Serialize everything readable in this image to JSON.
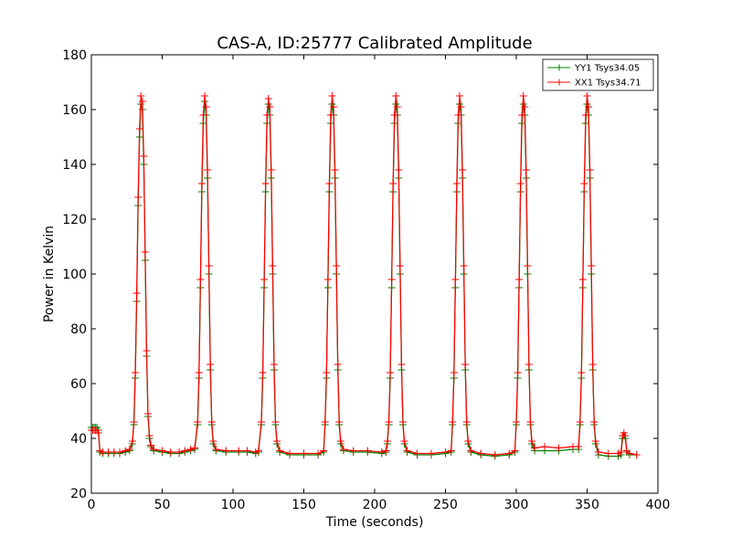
{
  "chart_data": {
    "type": "line",
    "title": "CAS-A, ID:25777 Calibrated Amplitude",
    "xlabel": "Time (seconds)",
    "ylabel": "Power in Kelvin",
    "xlim": [
      0,
      400
    ],
    "ylim": [
      20,
      180
    ],
    "xticks": [
      0,
      50,
      100,
      150,
      200,
      250,
      300,
      350,
      400
    ],
    "yticks": [
      20,
      40,
      60,
      80,
      100,
      120,
      140,
      160,
      180
    ],
    "grid": false,
    "legend_position": "top-right",
    "marker": "+",
    "series": [
      {
        "name": "YY1 Tsys34.05",
        "color": "#008000",
        "points": [
          [
            0,
            44
          ],
          [
            1,
            44
          ],
          [
            2,
            44
          ],
          [
            3,
            44
          ],
          [
            4,
            44
          ],
          [
            5,
            43
          ],
          [
            6,
            35
          ],
          [
            8,
            34.5
          ],
          [
            12,
            34.5
          ],
          [
            16,
            34.5
          ],
          [
            20,
            34.5
          ],
          [
            24,
            35
          ],
          [
            27,
            35.5
          ],
          [
            29,
            38
          ],
          [
            30,
            45
          ],
          [
            31,
            62
          ],
          [
            32,
            90
          ],
          [
            33,
            125
          ],
          [
            34,
            150
          ],
          [
            35,
            162
          ],
          [
            36,
            160
          ],
          [
            37,
            140
          ],
          [
            38,
            105
          ],
          [
            39,
            70
          ],
          [
            40,
            48
          ],
          [
            41,
            40
          ],
          [
            42,
            37
          ],
          [
            44,
            35.5
          ],
          [
            50,
            35
          ],
          [
            56,
            34.5
          ],
          [
            62,
            34.5
          ],
          [
            66,
            35
          ],
          [
            70,
            35.5
          ],
          [
            73,
            36
          ],
          [
            75,
            45
          ],
          [
            76,
            62
          ],
          [
            77,
            95
          ],
          [
            78,
            130
          ],
          [
            79,
            155
          ],
          [
            80,
            163
          ],
          [
            81,
            158
          ],
          [
            82,
            135
          ],
          [
            83,
            100
          ],
          [
            84,
            65
          ],
          [
            85,
            45
          ],
          [
            86,
            38
          ],
          [
            88,
            35.5
          ],
          [
            95,
            35
          ],
          [
            104,
            35
          ],
          [
            110,
            35
          ],
          [
            116,
            34.5
          ],
          [
            118,
            35
          ],
          [
            120,
            45
          ],
          [
            121,
            62
          ],
          [
            122,
            95
          ],
          [
            123,
            130
          ],
          [
            124,
            155
          ],
          [
            125,
            162
          ],
          [
            126,
            158
          ],
          [
            127,
            135
          ],
          [
            128,
            100
          ],
          [
            129,
            65
          ],
          [
            130,
            45
          ],
          [
            131,
            38
          ],
          [
            133,
            35
          ],
          [
            140,
            34
          ],
          [
            150,
            34
          ],
          [
            160,
            34
          ],
          [
            164,
            35
          ],
          [
            165,
            45
          ],
          [
            166,
            62
          ],
          [
            167,
            95
          ],
          [
            168,
            130
          ],
          [
            169,
            155
          ],
          [
            170,
            162
          ],
          [
            171,
            158
          ],
          [
            172,
            135
          ],
          [
            173,
            100
          ],
          [
            174,
            65
          ],
          [
            175,
            45
          ],
          [
            176,
            38
          ],
          [
            178,
            35.5
          ],
          [
            185,
            35
          ],
          [
            195,
            35
          ],
          [
            205,
            34.5
          ],
          [
            208,
            35
          ],
          [
            209,
            38
          ],
          [
            210,
            45
          ],
          [
            211,
            62
          ],
          [
            212,
            95
          ],
          [
            213,
            130
          ],
          [
            214,
            155
          ],
          [
            215,
            162
          ],
          [
            216,
            158
          ],
          [
            217,
            135
          ],
          [
            218,
            100
          ],
          [
            219,
            65
          ],
          [
            220,
            45
          ],
          [
            221,
            38
          ],
          [
            223,
            35
          ],
          [
            230,
            34
          ],
          [
            240,
            34
          ],
          [
            250,
            34.5
          ],
          [
            254,
            35
          ],
          [
            255,
            45
          ],
          [
            256,
            62
          ],
          [
            257,
            95
          ],
          [
            258,
            130
          ],
          [
            259,
            155
          ],
          [
            260,
            162
          ],
          [
            261,
            158
          ],
          [
            262,
            135
          ],
          [
            263,
            100
          ],
          [
            264,
            65
          ],
          [
            265,
            45
          ],
          [
            266,
            38
          ],
          [
            268,
            35
          ],
          [
            275,
            34
          ],
          [
            285,
            33.5
          ],
          [
            295,
            34
          ],
          [
            299,
            35
          ],
          [
            300,
            45
          ],
          [
            301,
            62
          ],
          [
            302,
            95
          ],
          [
            303,
            130
          ],
          [
            304,
            155
          ],
          [
            305,
            162
          ],
          [
            306,
            158
          ],
          [
            307,
            135
          ],
          [
            308,
            100
          ],
          [
            309,
            65
          ],
          [
            310,
            45
          ],
          [
            311,
            38
          ],
          [
            313,
            35.5
          ],
          [
            320,
            35.5
          ],
          [
            330,
            35.5
          ],
          [
            340,
            36
          ],
          [
            344,
            36
          ],
          [
            345,
            45
          ],
          [
            346,
            62
          ],
          [
            347,
            95
          ],
          [
            348,
            130
          ],
          [
            349,
            155
          ],
          [
            350,
            162
          ],
          [
            351,
            158
          ],
          [
            352,
            135
          ],
          [
            353,
            100
          ],
          [
            354,
            65
          ],
          [
            355,
            45
          ],
          [
            356,
            38
          ],
          [
            358,
            34
          ],
          [
            365,
            33.5
          ],
          [
            372,
            33.5
          ],
          [
            374,
            34
          ],
          [
            375,
            40
          ],
          [
            376,
            41
          ],
          [
            377,
            40
          ],
          [
            378,
            35
          ],
          [
            380,
            34
          ],
          [
            385,
            34
          ]
        ]
      },
      {
        "name": "XX1 Tsys34.71",
        "color": "#ff0000",
        "points": [
          [
            0,
            43
          ],
          [
            1,
            43
          ],
          [
            2,
            43
          ],
          [
            3,
            43
          ],
          [
            4,
            43
          ],
          [
            5,
            42
          ],
          [
            6,
            35.5
          ],
          [
            8,
            35
          ],
          [
            12,
            35
          ],
          [
            16,
            35
          ],
          [
            20,
            35
          ],
          [
            24,
            35.5
          ],
          [
            27,
            36
          ],
          [
            29,
            39
          ],
          [
            30,
            46
          ],
          [
            31,
            64
          ],
          [
            32,
            93
          ],
          [
            33,
            128
          ],
          [
            34,
            153
          ],
          [
            35,
            165
          ],
          [
            36,
            163
          ],
          [
            37,
            143
          ],
          [
            38,
            108
          ],
          [
            39,
            72
          ],
          [
            40,
            49
          ],
          [
            41,
            41
          ],
          [
            42,
            37.5
          ],
          [
            44,
            36
          ],
          [
            50,
            35.5
          ],
          [
            56,
            35
          ],
          [
            62,
            35
          ],
          [
            66,
            35.5
          ],
          [
            70,
            36
          ],
          [
            73,
            36.5
          ],
          [
            75,
            46
          ],
          [
            76,
            64
          ],
          [
            77,
            98
          ],
          [
            78,
            133
          ],
          [
            79,
            158
          ],
          [
            80,
            165
          ],
          [
            81,
            161
          ],
          [
            82,
            138
          ],
          [
            83,
            103
          ],
          [
            84,
            67
          ],
          [
            85,
            46
          ],
          [
            86,
            39
          ],
          [
            88,
            36
          ],
          [
            95,
            35.5
          ],
          [
            104,
            35.5
          ],
          [
            110,
            35.5
          ],
          [
            116,
            35
          ],
          [
            118,
            35.5
          ],
          [
            120,
            46
          ],
          [
            121,
            64
          ],
          [
            122,
            98
          ],
          [
            123,
            133
          ],
          [
            124,
            158
          ],
          [
            125,
            164
          ],
          [
            126,
            161
          ],
          [
            127,
            138
          ],
          [
            128,
            103
          ],
          [
            129,
            67
          ],
          [
            130,
            46
          ],
          [
            131,
            39
          ],
          [
            133,
            35.5
          ],
          [
            140,
            34.5
          ],
          [
            150,
            34.5
          ],
          [
            160,
            34.5
          ],
          [
            164,
            35.5
          ],
          [
            165,
            46
          ],
          [
            166,
            64
          ],
          [
            167,
            98
          ],
          [
            168,
            133
          ],
          [
            169,
            158
          ],
          [
            170,
            165
          ],
          [
            171,
            161
          ],
          [
            172,
            138
          ],
          [
            173,
            103
          ],
          [
            174,
            67
          ],
          [
            175,
            46
          ],
          [
            176,
            39
          ],
          [
            178,
            36
          ],
          [
            185,
            35.5
          ],
          [
            195,
            35.5
          ],
          [
            205,
            35
          ],
          [
            208,
            35.5
          ],
          [
            209,
            39
          ],
          [
            210,
            46
          ],
          [
            211,
            64
          ],
          [
            212,
            98
          ],
          [
            213,
            133
          ],
          [
            214,
            158
          ],
          [
            215,
            165
          ],
          [
            216,
            161
          ],
          [
            217,
            138
          ],
          [
            218,
            103
          ],
          [
            219,
            67
          ],
          [
            220,
            46
          ],
          [
            221,
            39
          ],
          [
            223,
            35.5
          ],
          [
            230,
            34.5
          ],
          [
            240,
            34.5
          ],
          [
            250,
            35
          ],
          [
            254,
            35.5
          ],
          [
            255,
            46
          ],
          [
            256,
            64
          ],
          [
            257,
            98
          ],
          [
            258,
            133
          ],
          [
            259,
            158
          ],
          [
            260,
            165
          ],
          [
            261,
            161
          ],
          [
            262,
            138
          ],
          [
            263,
            103
          ],
          [
            264,
            67
          ],
          [
            265,
            46
          ],
          [
            266,
            39
          ],
          [
            268,
            35.5
          ],
          [
            275,
            34.5
          ],
          [
            285,
            34
          ],
          [
            295,
            34.5
          ],
          [
            299,
            35.5
          ],
          [
            300,
            46
          ],
          [
            301,
            64
          ],
          [
            302,
            98
          ],
          [
            303,
            133
          ],
          [
            304,
            158
          ],
          [
            305,
            165
          ],
          [
            306,
            161
          ],
          [
            307,
            138
          ],
          [
            308,
            103
          ],
          [
            309,
            67
          ],
          [
            310,
            46
          ],
          [
            311,
            39
          ],
          [
            313,
            36.5
          ],
          [
            320,
            37
          ],
          [
            330,
            36.5
          ],
          [
            340,
            37
          ],
          [
            344,
            37
          ],
          [
            345,
            46
          ],
          [
            346,
            64
          ],
          [
            347,
            98
          ],
          [
            348,
            133
          ],
          [
            349,
            158
          ],
          [
            350,
            165
          ],
          [
            351,
            161
          ],
          [
            352,
            138
          ],
          [
            353,
            103
          ],
          [
            354,
            67
          ],
          [
            355,
            46
          ],
          [
            356,
            39
          ],
          [
            358,
            35
          ],
          [
            365,
            34.5
          ],
          [
            372,
            34.5
          ],
          [
            374,
            35
          ],
          [
            375,
            41
          ],
          [
            376,
            42
          ],
          [
            377,
            41
          ],
          [
            378,
            35.5
          ],
          [
            380,
            34.5
          ],
          [
            385,
            34
          ]
        ]
      }
    ]
  }
}
